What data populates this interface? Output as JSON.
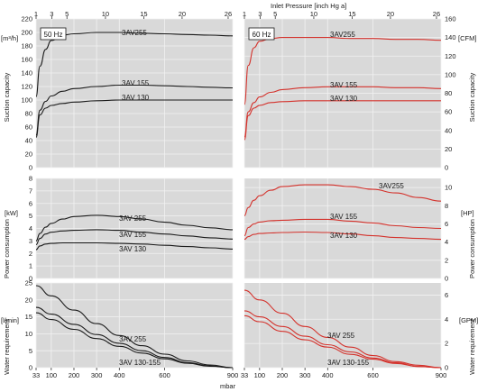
{
  "top_axis": {
    "title": "Inlet Pressure [inch Hg a]",
    "ticks": [
      {
        "label": "1",
        "mbar": 33
      },
      {
        "label": "3",
        "mbar": 102
      },
      {
        "label": "5",
        "mbar": 169
      },
      {
        "label": "10",
        "mbar": 339
      },
      {
        "label": "15",
        "mbar": 508
      },
      {
        "label": "20",
        "mbar": 677
      },
      {
        "label": "26",
        "mbar": 880
      }
    ]
  },
  "bottom_axis": {
    "unit": "mbar",
    "ticks": [
      {
        "label": "33",
        "mbar": 33
      },
      {
        "label": "100",
        "mbar": 100
      },
      {
        "label": "200",
        "mbar": 200
      },
      {
        "label": "300",
        "mbar": 300
      },
      {
        "label": "400",
        "mbar": 400
      },
      {
        "label": "600",
        "mbar": 600
      },
      {
        "label": "900",
        "mbar": 900
      }
    ]
  },
  "colors": {
    "panel_bg": "#d9d9d9",
    "grid": "#f2f2f2",
    "curve_50hz": "#1a1a1a",
    "curve_60hz": "#d4322c",
    "text": "#1a1a1a"
  },
  "chart_data": [
    {
      "type": "line",
      "panel": "suction-50hz",
      "frequency_label": "50 Hz",
      "unit": "[m³/h]",
      "ylabel": "Suction capacity",
      "x_unit": "mbar",
      "xlim": [
        33,
        900
      ],
      "ylim": [
        0,
        220
      ],
      "yticks": [
        0,
        20,
        40,
        60,
        80,
        100,
        120,
        140,
        160,
        180,
        200,
        220
      ],
      "series": [
        {
          "name": "3AV255",
          "x": [
            33,
            50,
            75,
            100,
            150,
            200,
            300,
            400,
            500,
            600,
            700,
            800,
            900
          ],
          "y": [
            105,
            150,
            175,
            188,
            196,
            198,
            200,
            200,
            199,
            198,
            197,
            196,
            195
          ]
        },
        {
          "name": "3AV 155",
          "x": [
            33,
            50,
            75,
            100,
            150,
            200,
            300,
            400,
            500,
            600,
            700,
            800,
            900
          ],
          "y": [
            48,
            85,
            98,
            106,
            113,
            117,
            120,
            122,
            122,
            121,
            120,
            119,
            118
          ]
        },
        {
          "name": "3AV 130",
          "x": [
            33,
            50,
            75,
            100,
            150,
            200,
            300,
            400,
            500,
            600,
            700,
            800,
            900
          ],
          "y": [
            45,
            78,
            88,
            92,
            95,
            97,
            99,
            100,
            100,
            100,
            100,
            100,
            100
          ]
        }
      ]
    },
    {
      "type": "line",
      "panel": "suction-60hz",
      "frequency_label": "60 Hz",
      "unit": "[CFM]",
      "ylabel": "Suction capacity",
      "x_unit": "mbar",
      "xlim": [
        33,
        900
      ],
      "ylim": [
        0,
        160
      ],
      "yticks": [
        0,
        20,
        40,
        60,
        80,
        100,
        120,
        140,
        160
      ],
      "series": [
        {
          "name": "3AV255",
          "x": [
            33,
            50,
            75,
            100,
            150,
            200,
            300,
            400,
            500,
            600,
            700,
            800,
            900
          ],
          "y": [
            68,
            110,
            129,
            136,
            139,
            140,
            140,
            140,
            139,
            139,
            138,
            138,
            137
          ]
        },
        {
          "name": "3AV 155",
          "x": [
            33,
            50,
            75,
            100,
            150,
            200,
            300,
            400,
            500,
            600,
            700,
            800,
            900
          ],
          "y": [
            33,
            60,
            70,
            76,
            81,
            84,
            86,
            87,
            87,
            87,
            86,
            86,
            85
          ]
        },
        {
          "name": "3AV 130",
          "x": [
            33,
            50,
            75,
            100,
            150,
            200,
            300,
            400,
            500,
            600,
            700,
            800,
            900
          ],
          "y": [
            30,
            56,
            64,
            67,
            70,
            71,
            72,
            72,
            72,
            72,
            72,
            72,
            72
          ]
        }
      ]
    },
    {
      "type": "line",
      "panel": "power-50hz",
      "unit": "[kW]",
      "ylabel": "Power consumption",
      "x_unit": "mbar",
      "xlim": [
        33,
        900
      ],
      "ylim": [
        0,
        8
      ],
      "yticks": [
        0,
        1,
        2,
        3,
        4,
        5,
        6,
        7,
        8
      ],
      "series": [
        {
          "name": "3AV 255",
          "x": [
            33,
            50,
            75,
            100,
            150,
            200,
            300,
            400,
            500,
            600,
            700,
            800,
            900
          ],
          "y": [
            3.0,
            3.6,
            4.1,
            4.4,
            4.75,
            4.95,
            5.05,
            4.95,
            4.75,
            4.5,
            4.25,
            4.05,
            3.9
          ]
        },
        {
          "name": "3AV 155",
          "x": [
            33,
            50,
            75,
            100,
            150,
            200,
            300,
            400,
            500,
            600,
            700,
            800,
            900
          ],
          "y": [
            2.7,
            3.2,
            3.55,
            3.7,
            3.8,
            3.85,
            3.9,
            3.85,
            3.7,
            3.55,
            3.4,
            3.25,
            3.15
          ]
        },
        {
          "name": "3AV 130",
          "x": [
            33,
            50,
            75,
            100,
            150,
            200,
            300,
            400,
            500,
            600,
            700,
            800,
            900
          ],
          "y": [
            2.3,
            2.6,
            2.75,
            2.8,
            2.85,
            2.85,
            2.85,
            2.8,
            2.75,
            2.65,
            2.55,
            2.45,
            2.35
          ]
        }
      ]
    },
    {
      "type": "line",
      "panel": "power-60hz",
      "unit": "[HP]",
      "ylabel": "Power consumption",
      "x_unit": "mbar",
      "xlim": [
        33,
        900
      ],
      "ylim": [
        0,
        11
      ],
      "yticks": [
        0,
        2,
        4,
        6,
        8,
        10
      ],
      "series": [
        {
          "name": "3AV255",
          "x": [
            33,
            50,
            75,
            100,
            150,
            200,
            300,
            400,
            500,
            600,
            700,
            800,
            900
          ],
          "y": [
            6.9,
            7.8,
            8.6,
            9.1,
            9.7,
            10.1,
            10.3,
            10.3,
            10.1,
            9.8,
            9.4,
            8.9,
            8.5
          ]
        },
        {
          "name": "3AV 155",
          "x": [
            33,
            50,
            75,
            100,
            150,
            200,
            300,
            400,
            500,
            600,
            700,
            800,
            900
          ],
          "y": [
            4.7,
            5.6,
            6.0,
            6.2,
            6.35,
            6.4,
            6.5,
            6.5,
            6.3,
            6.1,
            5.8,
            5.6,
            5.5
          ]
        },
        {
          "name": "3AV 130",
          "x": [
            33,
            50,
            75,
            100,
            150,
            200,
            300,
            400,
            500,
            600,
            700,
            800,
            900
          ],
          "y": [
            4.3,
            4.6,
            4.85,
            4.95,
            5.0,
            5.05,
            5.1,
            5.05,
            4.9,
            4.7,
            4.5,
            4.4,
            4.3
          ]
        }
      ]
    },
    {
      "type": "line",
      "panel": "water-50hz",
      "unit": "[l/min]",
      "ylabel": "Water requirement",
      "x_unit": "mbar",
      "xlim": [
        33,
        900
      ],
      "ylim": [
        0,
        25
      ],
      "yticks": [
        0,
        5,
        10,
        15,
        20,
        25
      ],
      "series": [
        {
          "name": "3AV 255",
          "x": [
            33,
            100,
            200,
            300,
            400,
            500,
            600,
            700,
            800,
            900
          ],
          "y": [
            24.2,
            21.2,
            17.0,
            13.0,
            9.5,
            6.5,
            4.0,
            2.0,
            0.8,
            0
          ]
        },
        {
          "name": "3AV 155",
          "x": [
            33,
            100,
            200,
            300,
            400,
            500,
            600,
            700,
            800,
            900
          ],
          "y": [
            17.8,
            15.8,
            12.8,
            9.8,
            7.2,
            5.0,
            3.0,
            1.5,
            0.5,
            0
          ]
        },
        {
          "name": "3AV 130",
          "x": [
            33,
            100,
            200,
            300,
            400,
            500,
            600,
            700,
            800,
            900
          ],
          "y": [
            16.2,
            14.2,
            11.3,
            8.6,
            6.3,
            4.3,
            2.6,
            1.3,
            0.4,
            0
          ]
        }
      ],
      "labels": [
        "3AV 255",
        "3AV 130-155"
      ]
    },
    {
      "type": "line",
      "panel": "water-60hz",
      "unit": "[GPM]",
      "ylabel": "Water requirement",
      "x_unit": "mbar",
      "xlim": [
        33,
        900
      ],
      "ylim": [
        0,
        7
      ],
      "yticks": [
        0,
        2,
        4,
        6
      ],
      "series": [
        {
          "name": "3AV 255",
          "x": [
            33,
            100,
            200,
            300,
            400,
            500,
            600,
            700,
            800,
            900
          ],
          "y": [
            6.4,
            5.6,
            4.5,
            3.4,
            2.5,
            1.7,
            1.0,
            0.5,
            0.2,
            0
          ]
        },
        {
          "name": "3AV 155",
          "x": [
            33,
            100,
            200,
            300,
            400,
            500,
            600,
            700,
            800,
            900
          ],
          "y": [
            4.7,
            4.2,
            3.4,
            2.6,
            1.9,
            1.3,
            0.8,
            0.4,
            0.1,
            0
          ]
        },
        {
          "name": "3AV 130",
          "x": [
            33,
            100,
            200,
            300,
            400,
            500,
            600,
            700,
            800,
            900
          ],
          "y": [
            4.3,
            3.8,
            3.0,
            2.3,
            1.7,
            1.1,
            0.7,
            0.35,
            0.1,
            0
          ]
        }
      ],
      "labels": [
        "3AV 255",
        "3AV 130-155"
      ]
    }
  ]
}
